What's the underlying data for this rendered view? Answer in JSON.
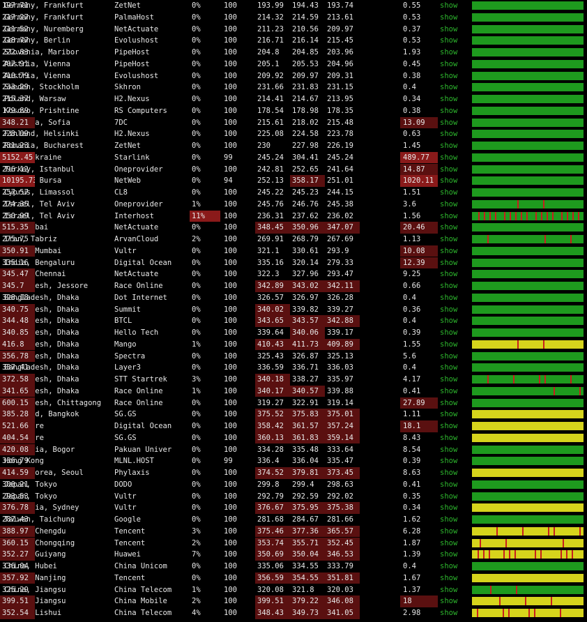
{
  "colors": {
    "green": "#1e9a1e",
    "yellow": "#d6d41c",
    "red_tick": "#c81e1e",
    "high_latency_bg": "#5a1010",
    "very_high_latency_bg": "#8a1a1a",
    "show_link": "#2db52d"
  },
  "rows": [
    {
      "location": "Germany, Frankfurt",
      "provider": "ZetNet",
      "loss": "0%",
      "sent": "100",
      "last": "193.99",
      "avg": "194.43",
      "best": "193.74",
      "worst": "197.71",
      "stdev": "0.55",
      "show": "show",
      "bar": "green"
    },
    {
      "location": "Germany, Frankfurt",
      "provider": "PalmaHost",
      "loss": "0%",
      "sent": "100",
      "last": "214.32",
      "avg": "214.59",
      "best": "213.61",
      "worst": "217.27",
      "stdev": "0.53",
      "show": "show",
      "bar": "green"
    },
    {
      "location": "Germany, Nuremberg",
      "provider": "NetActuate",
      "loss": "0%",
      "sent": "100",
      "last": "211.23",
      "avg": "210.56",
      "best": "209.97",
      "worst": "211.52",
      "stdev": "0.37",
      "show": "show",
      "bar": "green"
    },
    {
      "location": "Germany, Berlin",
      "provider": "Evolushost",
      "loss": "0%",
      "sent": "100",
      "last": "216.71",
      "avg": "216.14",
      "best": "215.45",
      "worst": "218.77",
      "stdev": "0.53",
      "show": "show",
      "bar": "green"
    },
    {
      "location": "Slovenia, Maribor",
      "provider": "PipeHost",
      "loss": "0%",
      "sent": "100",
      "last": "204.8",
      "avg": "204.85",
      "best": "203.96",
      "worst": "222.83",
      "stdev": "1.93",
      "show": "show",
      "bar": "green"
    },
    {
      "location": "Austria, Vienna",
      "provider": "PipeHost",
      "loss": "0%",
      "sent": "100",
      "last": "205.1",
      "avg": "205.53",
      "best": "204.96",
      "worst": "207.91",
      "stdev": "0.45",
      "show": "show",
      "bar": "green"
    },
    {
      "location": "Austria, Vienna",
      "provider": "Evolushost",
      "loss": "0%",
      "sent": "100",
      "last": "209.92",
      "avg": "209.97",
      "best": "209.31",
      "worst": "210.79",
      "stdev": "0.38",
      "show": "show",
      "bar": "green"
    },
    {
      "location": "Sweden, Stockholm",
      "provider": "Skhron",
      "loss": "0%",
      "sent": "100",
      "last": "231.66",
      "avg": "231.83",
      "best": "231.15",
      "worst": "233.29",
      "stdev": "0.4",
      "show": "show",
      "bar": "green"
    },
    {
      "location": "Poland, Warsaw",
      "provider": "H2.Nexus",
      "loss": "0%",
      "sent": "100",
      "last": "214.41",
      "avg": "214.67",
      "best": "213.95",
      "worst": "215.37",
      "stdev": "0.34",
      "show": "show",
      "bar": "green"
    },
    {
      "location": "Kosovo, Prishtine",
      "provider": "RS Computers",
      "loss": "0%",
      "sent": "100",
      "last": "178.54",
      "avg": "178.98",
      "best": "178.35",
      "worst": "179.89",
      "stdev": "0.38",
      "show": "show",
      "bar": "green"
    },
    {
      "location": "Bulgaria, Sofia",
      "provider": "7DC",
      "loss": "0%",
      "sent": "100",
      "last": "215.61",
      "avg": "218.02",
      "best": "215.48",
      "worst": "348.21",
      "stdev": "13.09",
      "show": "show",
      "bar": "green"
    },
    {
      "location": "Finland, Helsinki",
      "provider": "H2.Nexus",
      "loss": "0%",
      "sent": "100",
      "last": "225.08",
      "avg": "224.58",
      "best": "223.78",
      "worst": "228.09",
      "stdev": "0.63",
      "show": "show",
      "bar": "green"
    },
    {
      "location": "Romania, Bucharest",
      "provider": "ZetNet",
      "loss": "0%",
      "sent": "100",
      "last": "230",
      "avg": "227.98",
      "best": "226.19",
      "worst": "231.23",
      "stdev": "1.45",
      "show": "show",
      "bar": "green"
    },
    {
      "location": "Kyiv, Ukraine",
      "provider": "Starlink",
      "loss": "0%",
      "sent": "99",
      "last": "245.24",
      "avg": "304.41",
      "best": "245.24",
      "worst": "5152.45",
      "stdev": "489.77",
      "show": "show",
      "bar": "green"
    },
    {
      "location": "Turkey, Istanbul",
      "provider": "Oneprovider",
      "loss": "0%",
      "sent": "100",
      "last": "242.81",
      "avg": "252.65",
      "best": "241.64",
      "worst": "296.12",
      "stdev": "14.87",
      "show": "show",
      "bar": "green"
    },
    {
      "location": "Turkey, Bursa",
      "provider": "NetWeb",
      "loss": "0%",
      "sent": "94",
      "last": "252.13",
      "avg": "358.17",
      "best": "251.01",
      "worst": "10195.73",
      "stdev": "1020.11",
      "show": "show",
      "bar": "green"
    },
    {
      "location": "Cyprus, Limassol",
      "provider": "CL8",
      "loss": "0%",
      "sent": "100",
      "last": "245.22",
      "avg": "245.23",
      "best": "244.15",
      "worst": "257.57",
      "stdev": "1.51",
      "show": "show",
      "bar": "green"
    },
    {
      "location": "Israel, Tel Aviv",
      "provider": "Oneprovider",
      "loss": "1%",
      "sent": "100",
      "last": "245.76",
      "avg": "246.76",
      "best": "245.38",
      "worst": "274.35",
      "stdev": "3.6",
      "show": "show",
      "bar": "green"
    },
    {
      "location": "Israel, Tel Aviv",
      "provider": "Interhost",
      "loss": "11%",
      "sent": "100",
      "last": "236.31",
      "avg": "237.62",
      "best": "236.02",
      "worst": "250.99",
      "stdev": "1.56",
      "show": "show",
      "bar": "green"
    },
    {
      "location": "UAE, Dubai",
      "provider": "NetActuate",
      "loss": "0%",
      "sent": "100",
      "last": "348.45",
      "avg": "350.96",
      "best": "347.07",
      "worst": "515.35",
      "stdev": "20.46",
      "show": "show",
      "bar": "green"
    },
    {
      "location": "Iran, Tabriz",
      "provider": "ArvanCloud",
      "loss": "2%",
      "sent": "100",
      "last": "269.91",
      "avg": "268.79",
      "best": "267.69",
      "worst": "275.75",
      "stdev": "1.13",
      "show": "show",
      "bar": "green"
    },
    {
      "location": "India, Mumbai",
      "provider": "Vultr",
      "loss": "0%",
      "sent": "100",
      "last": "321.1",
      "avg": "330.61",
      "best": "293.9",
      "worst": "350.91",
      "stdev": "10.08",
      "show": "show",
      "bar": "green"
    },
    {
      "location": "India, Bengaluru",
      "provider": "Digital Ocean",
      "loss": "0%",
      "sent": "100",
      "last": "335.16",
      "avg": "320.14",
      "best": "279.33",
      "worst": "335.16",
      "stdev": "12.39",
      "show": "show",
      "bar": "green"
    },
    {
      "location": "India, Chennai",
      "provider": "NetActuate",
      "loss": "0%",
      "sent": "100",
      "last": "322.3",
      "avg": "327.96",
      "best": "293.47",
      "worst": "345.47",
      "stdev": "9.25",
      "show": "show",
      "bar": "green"
    },
    {
      "location": "Bangladesh, Jessore",
      "provider": "Race Online",
      "loss": "0%",
      "sent": "100",
      "last": "342.89",
      "avg": "343.02",
      "best": "342.11",
      "worst": "345.7",
      "stdev": "0.66",
      "show": "show",
      "bar": "green"
    },
    {
      "location": "Bangladesh, Dhaka",
      "provider": "Dot Internet",
      "loss": "0%",
      "sent": "100",
      "last": "326.57",
      "avg": "326.97",
      "best": "326.28",
      "worst": "328.18",
      "stdev": "0.4",
      "show": "show",
      "bar": "green"
    },
    {
      "location": "Bangladesh, Dhaka",
      "provider": "Summit",
      "loss": "0%",
      "sent": "100",
      "last": "340.02",
      "avg": "339.82",
      "best": "339.27",
      "worst": "340.75",
      "stdev": "0.36",
      "show": "show",
      "bar": "green"
    },
    {
      "location": "Bangladesh, Dhaka",
      "provider": "BTCL",
      "loss": "0%",
      "sent": "100",
      "last": "343.65",
      "avg": "343.57",
      "best": "342.88",
      "worst": "344.48",
      "stdev": "0.4",
      "show": "show",
      "bar": "green"
    },
    {
      "location": "Bangladesh, Dhaka",
      "provider": "Hello Tech",
      "loss": "0%",
      "sent": "100",
      "last": "339.64",
      "avg": "340.06",
      "best": "339.17",
      "worst": "340.85",
      "stdev": "0.39",
      "show": "show",
      "bar": "green"
    },
    {
      "location": "Bangladesh, Dhaka",
      "provider": "Mango",
      "loss": "1%",
      "sent": "100",
      "last": "410.43",
      "avg": "411.73",
      "best": "409.89",
      "worst": "416.8",
      "stdev": "1.55",
      "show": "show",
      "bar": "yellow"
    },
    {
      "location": "Bangladesh, Dhaka",
      "provider": "Spectra",
      "loss": "0%",
      "sent": "100",
      "last": "325.43",
      "avg": "326.87",
      "best": "325.13",
      "worst": "356.78",
      "stdev": "5.6",
      "show": "show",
      "bar": "green"
    },
    {
      "location": "Bangladesh, Dhaka",
      "provider": "Layer3",
      "loss": "0%",
      "sent": "100",
      "last": "336.59",
      "avg": "336.71",
      "best": "336.03",
      "worst": "337.41",
      "stdev": "0.4",
      "show": "show",
      "bar": "green"
    },
    {
      "location": "Bangladesh, Dhaka",
      "provider": "STT Startrek",
      "loss": "3%",
      "sent": "100",
      "last": "340.18",
      "avg": "338.27",
      "best": "335.97",
      "worst": "372.58",
      "stdev": "4.17",
      "show": "show",
      "bar": "green"
    },
    {
      "location": "Bangladesh, Dhaka",
      "provider": "Race Online",
      "loss": "1%",
      "sent": "100",
      "last": "340.17",
      "avg": "340.57",
      "best": "339.88",
      "worst": "341.65",
      "stdev": "0.41",
      "show": "show",
      "bar": "green"
    },
    {
      "location": "Bangladesh, Chittagong",
      "provider": "Race Online",
      "loss": "0%",
      "sent": "100",
      "last": "319.27",
      "avg": "322.91",
      "best": "319.14",
      "worst": "600.15",
      "stdev": "27.89",
      "show": "show",
      "bar": "green"
    },
    {
      "location": "Thailand, Bangkok",
      "provider": "SG.GS",
      "loss": "0%",
      "sent": "100",
      "last": "375.52",
      "avg": "375.83",
      "best": "375.01",
      "worst": "385.28",
      "stdev": "1.11",
      "show": "show",
      "bar": "yellow"
    },
    {
      "location": "Singapore",
      "provider": "Digital Ocean",
      "loss": "0%",
      "sent": "100",
      "last": "358.42",
      "avg": "361.57",
      "best": "357.24",
      "worst": "521.66",
      "stdev": "18.1",
      "show": "show",
      "bar": "yellow"
    },
    {
      "location": "Singapore",
      "provider": "SG.GS",
      "loss": "0%",
      "sent": "100",
      "last": "360.13",
      "avg": "361.83",
      "best": "359.14",
      "worst": "404.54",
      "stdev": "8.43",
      "show": "show",
      "bar": "yellow"
    },
    {
      "location": "Indonesia, Bogor",
      "provider": "Pakuan Univer",
      "loss": "0%",
      "sent": "100",
      "last": "334.28",
      "avg": "335.48",
      "best": "333.64",
      "worst": "420.08",
      "stdev": "8.54",
      "show": "show",
      "bar": "green"
    },
    {
      "location": "Hong Kong",
      "provider": "MLNL.HOST",
      "loss": "0%",
      "sent": "99",
      "last": "336.4",
      "avg": "336.04",
      "best": "335.47",
      "worst": "336.79",
      "stdev": "0.39",
      "show": "show",
      "bar": "green"
    },
    {
      "location": "South Korea, Seoul",
      "provider": "Phylaxis",
      "loss": "0%",
      "sent": "100",
      "last": "374.52",
      "avg": "379.81",
      "best": "373.45",
      "worst": "414.59",
      "stdev": "8.63",
      "show": "show",
      "bar": "yellow"
    },
    {
      "location": "Japan, Tokyo",
      "provider": "DODO",
      "loss": "0%",
      "sent": "100",
      "last": "299.8",
      "avg": "299.4",
      "best": "298.63",
      "worst": "300.21",
      "stdev": "0.41",
      "show": "show",
      "bar": "green"
    },
    {
      "location": "Japan, Tokyo",
      "provider": "Vultr",
      "loss": "0%",
      "sent": "100",
      "last": "292.79",
      "avg": "292.59",
      "best": "292.02",
      "worst": "293.53",
      "stdev": "0.35",
      "show": "show",
      "bar": "green"
    },
    {
      "location": "Australia, Sydney",
      "provider": "Vultr",
      "loss": "0%",
      "sent": "100",
      "last": "376.67",
      "avg": "375.95",
      "best": "375.38",
      "worst": "376.78",
      "stdev": "0.34",
      "show": "show",
      "bar": "yellow"
    },
    {
      "location": "Taiwan, Taichung",
      "provider": "Google",
      "loss": "0%",
      "sent": "100",
      "last": "281.68",
      "avg": "284.67",
      "best": "281.66",
      "worst": "287.43",
      "stdev": "1.62",
      "show": "show",
      "bar": "green"
    },
    {
      "location": "China, Chengdu",
      "provider": "Tencent",
      "loss": "3%",
      "sent": "100",
      "last": "375.46",
      "avg": "377.36",
      "best": "365.57",
      "worst": "388.97",
      "stdev": "6.28",
      "show": "show",
      "bar": "yellow"
    },
    {
      "location": "China, Chongqing",
      "provider": "Tencent",
      "loss": "2%",
      "sent": "100",
      "last": "353.74",
      "avg": "355.71",
      "best": "352.45",
      "worst": "360.15",
      "stdev": "1.87",
      "show": "show",
      "bar": "yellow"
    },
    {
      "location": "China, Guiyang",
      "provider": "Huawei",
      "loss": "7%",
      "sent": "100",
      "last": "350.69",
      "avg": "350.04",
      "best": "346.53",
      "worst": "352.27",
      "stdev": "1.39",
      "show": "show",
      "bar": "yellow"
    },
    {
      "location": "China, Hubei",
      "provider": "China Unicom",
      "loss": "0%",
      "sent": "100",
      "last": "335.06",
      "avg": "334.55",
      "best": "333.79",
      "worst": "336.04",
      "stdev": "0.4",
      "show": "show",
      "bar": "green"
    },
    {
      "location": "China, Nanjing",
      "provider": "Tencent",
      "loss": "0%",
      "sent": "100",
      "last": "356.59",
      "avg": "354.55",
      "best": "351.81",
      "worst": "357.92",
      "stdev": "1.67",
      "show": "show",
      "bar": "yellow"
    },
    {
      "location": "China, Jiangsu",
      "provider": "China Telecom",
      "loss": "1%",
      "sent": "100",
      "last": "320.08",
      "avg": "321.8",
      "best": "320.03",
      "worst": "325.29",
      "stdev": "1.37",
      "show": "show",
      "bar": "green"
    },
    {
      "location": "China, Jiangsu",
      "provider": "China Mobile",
      "loss": "2%",
      "sent": "100",
      "last": "399.51",
      "avg": "379.22",
      "best": "346.08",
      "worst": "399.51",
      "stdev": "18",
      "show": "show",
      "bar": "yellow"
    },
    {
      "location": "China, Lishui",
      "provider": "China Telecom",
      "loss": "4%",
      "sent": "100",
      "last": "348.43",
      "avg": "349.73",
      "best": "341.05",
      "worst": "352.54",
      "stdev": "2.98",
      "show": "show",
      "bar": "yellow"
    }
  ]
}
